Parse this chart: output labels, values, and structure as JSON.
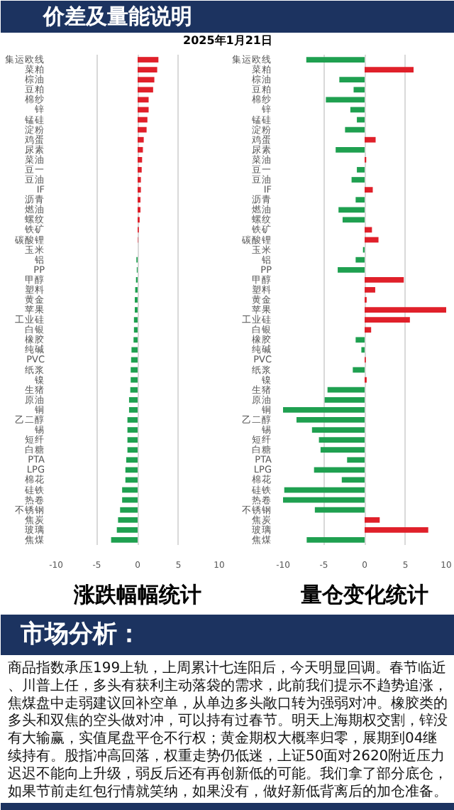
{
  "chart_data": [
    {
      "type": "other",
      "title": "价差及量能说明",
      "subtitle": "2025年1月21日"
    },
    {
      "type": "bar",
      "orientation": "horizontal",
      "title": "涨跌幅幅统计",
      "categories": [
        "集运欧线",
        "菜粕",
        "棕油",
        "豆粕",
        "棉纱",
        "锌",
        "锰硅",
        "淀粉",
        "鸡蛋",
        "尿素",
        "菜油",
        "豆一",
        "豆油",
        "IF",
        "沥青",
        "燃油",
        "螺纹",
        "铁矿",
        "碳酸锂",
        "玉米",
        "铝",
        "PP",
        "甲醇",
        "塑料",
        "黄金",
        "苹果",
        "工业硅",
        "白银",
        "橡胶",
        "纯碱",
        "PVC",
        "纸浆",
        "镍",
        "生猪",
        "原油",
        "铜",
        "乙二醇",
        "锡",
        "短纤",
        "白糖",
        "PTA",
        "LPG",
        "棉花",
        "硅铁",
        "热卷",
        "不锈钢",
        "焦炭",
        "玻璃",
        "焦煤"
      ],
      "values": [
        2.55,
        2.4,
        2.05,
        1.9,
        1.35,
        1.35,
        1.2,
        1.1,
        0.75,
        0.65,
        0.55,
        0.5,
        0.4,
        0.4,
        0.35,
        0.35,
        0.25,
        0.15,
        0.05,
        0,
        -0.15,
        -0.1,
        -0.2,
        -0.3,
        -0.35,
        -0.35,
        -0.45,
        -0.45,
        -0.5,
        -0.75,
        -0.8,
        -0.85,
        -0.85,
        -0.9,
        -1.05,
        -1.05,
        -1.25,
        -1.25,
        -1.25,
        -1.25,
        -1.4,
        -1.5,
        -1.5,
        -1.9,
        -1.9,
        -2.15,
        -2.4,
        -2.55,
        -3.25
      ],
      "colors": [
        "#e0202a",
        "#e0202a",
        "#e0202a",
        "#e0202a",
        "#e0202a",
        "#e0202a",
        "#e0202a",
        "#e0202a",
        "#e0202a",
        "#e0202a",
        "#e0202a",
        "#e0202a",
        "#e0202a",
        "#e0202a",
        "#e0202a",
        "#e0202a",
        "#e0202a",
        "#e0202a",
        "#e0202a",
        "#1fa050",
        "#1fa050",
        "#1fa050",
        "#1fa050",
        "#1fa050",
        "#1fa050",
        "#1fa050",
        "#1fa050",
        "#1fa050",
        "#1fa050",
        "#1fa050",
        "#1fa050",
        "#1fa050",
        "#1fa050",
        "#1fa050",
        "#1fa050",
        "#1fa050",
        "#1fa050",
        "#1fa050",
        "#1fa050",
        "#1fa050",
        "#1fa050",
        "#1fa050",
        "#1fa050",
        "#1fa050",
        "#1fa050",
        "#1fa050",
        "#1fa050",
        "#1fa050",
        "#1fa050"
      ],
      "xlim": [
        -10,
        10
      ],
      "xticks": [
        -10,
        -5,
        0,
        5,
        10
      ],
      "grid": "x"
    },
    {
      "type": "bar",
      "orientation": "horizontal",
      "title": "量仓变化统计",
      "categories": [
        "集运欧线",
        "菜粕",
        "棕油",
        "豆粕",
        "棉纱",
        "锌",
        "锰硅",
        "淀粉",
        "鸡蛋",
        "尿素",
        "菜油",
        "豆一",
        "豆油",
        "IF",
        "沥青",
        "燃油",
        "螺纹",
        "铁矿",
        "碳酸锂",
        "玉米",
        "铝",
        "PP",
        "甲醇",
        "塑料",
        "黄金",
        "苹果",
        "工业硅",
        "白银",
        "橡胶",
        "纯碱",
        "PVC",
        "纸浆",
        "镍",
        "生猪",
        "原油",
        "铜",
        "乙二醇",
        "锡",
        "短纤",
        "白糖",
        "PTA",
        "LPG",
        "棉花",
        "硅铁",
        "热卷",
        "不锈钢",
        "焦炭",
        "玻璃",
        "焦煤"
      ],
      "values": [
        -7.15,
        6.0,
        -3.1,
        -1.35,
        -4.75,
        -1.75,
        -0.95,
        -2.4,
        1.35,
        -3.55,
        0.2,
        -0.95,
        -1.6,
        1.0,
        -1.1,
        -3.2,
        -2.7,
        0.9,
        1.7,
        -0.2,
        -1.1,
        -3.3,
        4.8,
        1.3,
        0.25,
        10.0,
        5.55,
        0.8,
        -1.1,
        -0.4,
        0.15,
        -1.45,
        0.25,
        -4.55,
        -4.9,
        -10.0,
        -8.35,
        -6.45,
        -5.6,
        -5.4,
        -2.15,
        -6.2,
        -2.8,
        -9.85,
        -10.0,
        -6.1,
        1.85,
        7.8,
        -7.1
      ],
      "colors": [
        "#1fa050",
        "#e0202a",
        "#1fa050",
        "#1fa050",
        "#1fa050",
        "#1fa050",
        "#1fa050",
        "#1fa050",
        "#e0202a",
        "#1fa050",
        "#e0202a",
        "#1fa050",
        "#1fa050",
        "#e0202a",
        "#1fa050",
        "#1fa050",
        "#1fa050",
        "#e0202a",
        "#e0202a",
        "#1fa050",
        "#1fa050",
        "#1fa050",
        "#e0202a",
        "#e0202a",
        "#e0202a",
        "#e0202a",
        "#e0202a",
        "#e0202a",
        "#1fa050",
        "#1fa050",
        "#e0202a",
        "#1fa050",
        "#e0202a",
        "#1fa050",
        "#1fa050",
        "#1fa050",
        "#1fa050",
        "#1fa050",
        "#1fa050",
        "#1fa050",
        "#1fa050",
        "#1fa050",
        "#1fa050",
        "#1fa050",
        "#1fa050",
        "#1fa050",
        "#e0202a",
        "#e0202a",
        "#1fa050"
      ],
      "xlim": [
        -10,
        10
      ],
      "xticks": [
        -10,
        -5,
        0,
        5,
        10
      ],
      "grid": "x"
    },
    {
      "type": "other",
      "title": "市场分析：",
      "annotations": [
        "商品指数承压199上轨，上周累计七连阳后，今天明显回调。春节临近、川普上任，多头有获利主动落袋的需求，此前我们提示不趋势追涨，焦煤盘中走弱建议回补空单，从单边多头敞口转为强弱对冲。橡胶类的多头和双焦的空头做对冲，可以持有过春节。明天上海期权交割，锌没有大输赢，实值尾盘平仓不行权；黄金期权大概率归零，展期到04继续持有。股指冲高回落，权重走势仍低迷，上证50面对2620附近压力迟迟不能向上升级，弱反后还有再创新低的可能。我们拿了部分底仓，如果节前走红包行情就笑纳，如果没有，做好新低背离后的加仓准备。"
      ]
    }
  ]
}
